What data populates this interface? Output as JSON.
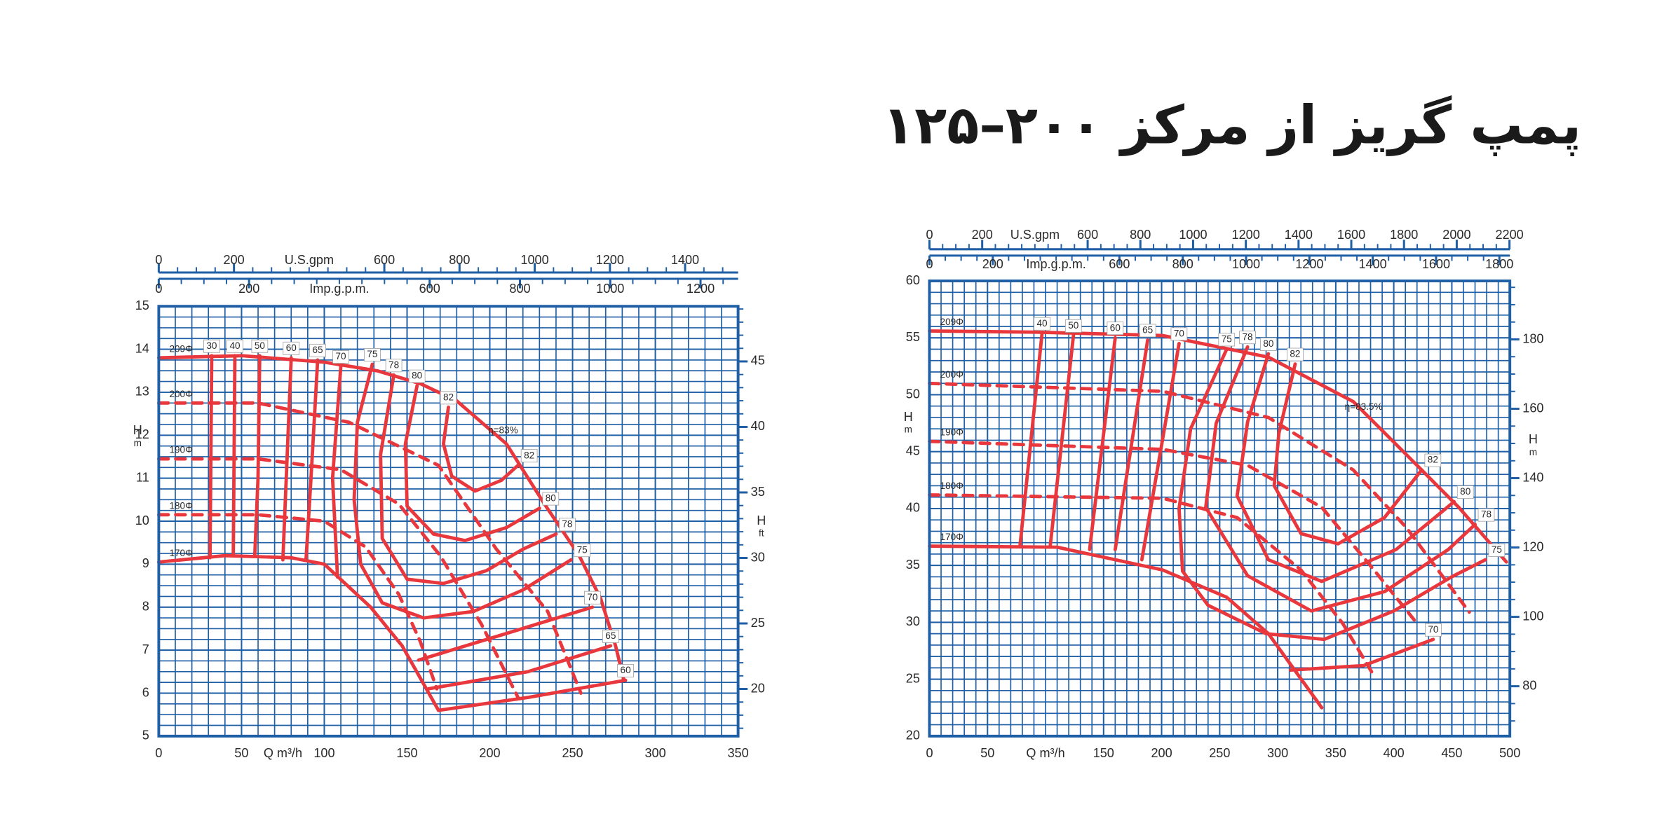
{
  "title": "پمپ گریز از مرکز ۲۰۰–۱۲۵",
  "chart_data": [
    {
      "type": "line",
      "color": "#e8383d",
      "grid": true,
      "x_label": "Q m³/h",
      "xlim": [
        0,
        350
      ],
      "xticks": [
        0,
        50,
        100,
        150,
        200,
        250,
        300,
        350
      ],
      "y_label": "H",
      "y_unit": "m",
      "ylim": [
        5,
        15
      ],
      "yticks": [
        5,
        6,
        7,
        8,
        9,
        10,
        11,
        12,
        13,
        14,
        15
      ],
      "y2_label": "H",
      "y2_unit": "ft",
      "y2lim": [
        16.4,
        49.21
      ],
      "y2ticks": [
        20,
        25,
        30,
        35,
        40,
        45
      ],
      "top_axes": [
        {
          "label": "U.S.gpm",
          "lim": [
            0,
            1541
          ],
          "ticks": [
            0,
            200,
            600,
            800,
            1000,
            1200,
            1400
          ]
        },
        {
          "label": "Imp.g.p.m.",
          "lim": [
            0,
            1283.2
          ],
          "ticks": [
            0,
            200,
            600,
            800,
            1000,
            1200
          ]
        }
      ],
      "series": [
        {
          "name": "209Φ",
          "dash": false,
          "x": [
            0,
            50,
            100,
            132,
            158,
            180,
            210,
            233,
            254,
            267,
            276,
            281
          ],
          "values": [
            13.8,
            13.85,
            13.7,
            13.5,
            13.2,
            12.8,
            11.8,
            10.4,
            9.2,
            8.2,
            7.1,
            6.3
          ]
        },
        {
          "name": "200Φ",
          "dash": true,
          "x": [
            0,
            60,
            115,
            169,
            204,
            235,
            255
          ],
          "values": [
            12.75,
            12.75,
            12.3,
            11.3,
            9.35,
            7.9,
            6.0
          ]
        },
        {
          "name": "190Φ",
          "dash": true,
          "x": [
            0,
            60,
            110,
            145,
            170,
            195,
            217
          ],
          "values": [
            11.45,
            11.45,
            11.2,
            10.4,
            9.2,
            7.6,
            5.9
          ]
        },
        {
          "name": "180Φ",
          "dash": true,
          "x": [
            0,
            60,
            100,
            125,
            145,
            158,
            168
          ],
          "values": [
            10.15,
            10.15,
            10.0,
            9.4,
            8.3,
            7.2,
            6.1
          ]
        },
        {
          "name": "170Φ",
          "dash": false,
          "x": [
            0,
            40,
            80,
            100,
            128,
            147,
            169
          ],
          "values": [
            9.05,
            9.2,
            9.15,
            9.0,
            8.0,
            7.1,
            5.6
          ]
        }
      ],
      "efficiency_curves": [
        {
          "name": "30",
          "x": [
            32,
            31
          ],
          "values": [
            13.85,
            9.15
          ]
        },
        {
          "name": "40",
          "x": [
            46,
            45
          ],
          "values": [
            13.85,
            9.2
          ]
        },
        {
          "name": "50",
          "x": [
            61,
            60,
            58
          ],
          "values": [
            13.85,
            11,
            9.2
          ]
        },
        {
          "name": "60",
          "x": [
            80,
            77,
            75
          ],
          "values": [
            13.8,
            11,
            9.1
          ]
        },
        {
          "name": "65",
          "x": [
            96,
            92,
            89
          ],
          "values": [
            13.75,
            11,
            9.1
          ]
        },
        {
          "name": "70",
          "x": [
            110,
            105,
            108
          ],
          "values": [
            13.6,
            11,
            8.7
          ]
        },
        {
          "name": "75",
          "x": [
            129,
            120,
            118,
            122,
            135,
            160,
            190,
            220,
            249
          ],
          "values": [
            13.65,
            12.3,
            10.5,
            9.0,
            8.1,
            7.75,
            7.9,
            8.4,
            9.1
          ]
        },
        {
          "name": "78",
          "x": [
            142,
            134,
            135,
            150,
            172,
            198,
            220,
            240
          ],
          "values": [
            13.4,
            11.55,
            9.6,
            8.65,
            8.55,
            8.85,
            9.35,
            9.7
          ]
        },
        {
          "name": "80",
          "x": [
            156,
            149,
            150,
            166,
            185,
            210,
            230
          ],
          "values": [
            13.15,
            11.8,
            10.35,
            9.7,
            9.55,
            9.85,
            10.3
          ]
        },
        {
          "name": "82",
          "x": [
            175,
            172,
            177,
            191,
            207,
            217
          ],
          "values": [
            12.65,
            11.8,
            11.05,
            10.7,
            10.95,
            11.3
          ]
        },
        {
          "name": "70",
          "x": [
            262,
            211,
            157
          ],
          "values": [
            8.0,
            7.4,
            6.77
          ]
        },
        {
          "name": "65",
          "x": [
            273,
            223,
            163
          ],
          "values": [
            7.1,
            6.5,
            6.1
          ]
        },
        {
          "name": "60",
          "x": [
            282,
            223,
            169
          ],
          "values": [
            6.3,
            5.9,
            5.6
          ]
        }
      ],
      "annotations": [
        {
          "text": "η=83%",
          "x": 208,
          "y": 12.1
        }
      ]
    },
    {
      "type": "line",
      "color": "#e8383d",
      "grid": true,
      "x_label": "Q m³/h",
      "xlim": [
        0,
        500
      ],
      "xticks": [
        0,
        50,
        150,
        200,
        250,
        300,
        350,
        400,
        450,
        500
      ],
      "y_label": "H",
      "y_unit": "m",
      "ylim": [
        20,
        60
      ],
      "yticks": [
        20,
        25,
        30,
        35,
        40,
        45,
        50,
        55,
        60
      ],
      "y2_label": "H",
      "y2_unit": "m",
      "y2lim": [
        65.62,
        196.85
      ],
      "y2ticks": [
        80,
        100,
        120,
        140,
        160,
        180
      ],
      "top_axes": [
        {
          "label": "U.S.gpm",
          "lim": [
            0,
            2201.5
          ],
          "ticks": [
            0,
            200,
            600,
            800,
            1000,
            1200,
            1400,
            1600,
            1800,
            2000,
            2200
          ]
        },
        {
          "label": "Imp.g.p.m.",
          "lim": [
            0,
            1833.1
          ],
          "ticks": [
            0,
            200,
            600,
            800,
            1000,
            1200,
            1400,
            1600,
            1800
          ]
        }
      ],
      "series": [
        {
          "name": "209Φ",
          "dash": false,
          "x": [
            0,
            92,
            201,
            292,
            365,
            420,
            456,
            497
          ],
          "values": [
            55.6,
            55.5,
            55.2,
            53.3,
            49.4,
            43.8,
            40.1,
            35.3
          ]
        },
        {
          "name": "200Φ",
          "dash": true,
          "x": [
            0,
            201,
            292,
            365,
            411,
            465
          ],
          "values": [
            51.0,
            50.3,
            48.0,
            43.4,
            38.3,
            30.9
          ]
        },
        {
          "name": "190Φ",
          "dash": true,
          "x": [
            0,
            201,
            274,
            338,
            383,
            420
          ],
          "values": [
            45.9,
            45.2,
            43.8,
            40.1,
            34.6,
            29.9
          ]
        },
        {
          "name": "180Φ",
          "dash": true,
          "x": [
            0,
            201,
            265,
            320,
            356,
            383
          ],
          "values": [
            41.2,
            40.9,
            39.2,
            34.6,
            29.9,
            25.3
          ]
        },
        {
          "name": "170Φ",
          "dash": false,
          "x": [
            0,
            110,
            201,
            256,
            292,
            338
          ],
          "values": [
            36.7,
            36.6,
            34.6,
            32.2,
            29.0,
            22.5
          ]
        }
      ],
      "efficiency_curves": [
        {
          "name": "40",
          "x": [
            97,
            78
          ],
          "values": [
            55.4,
            36.7
          ]
        },
        {
          "name": "50",
          "x": [
            124,
            104
          ],
          "values": [
            55.2,
            36.7
          ]
        },
        {
          "name": "60",
          "x": [
            160,
            138
          ],
          "values": [
            55.0,
            36.4
          ]
        },
        {
          "name": "65",
          "x": [
            188,
            160
          ],
          "values": [
            54.8,
            36.4
          ]
        },
        {
          "name": "70",
          "x": [
            215,
            183
          ],
          "values": [
            54.5,
            35.5
          ]
        },
        {
          "name": "75",
          "x": [
            256,
            225,
            215,
            218,
            240,
            290,
            340,
            400,
            450,
            479
          ],
          "values": [
            54.0,
            47,
            40,
            34.5,
            31.5,
            29.0,
            28.5,
            31,
            34,
            35.5
          ]
        },
        {
          "name": "78",
          "x": [
            274,
            247,
            238,
            274,
            329,
            392,
            447,
            470
          ],
          "values": [
            54.2,
            47.5,
            40.1,
            34.1,
            31.0,
            32.7,
            36.4,
            38.6
          ]
        },
        {
          "name": "80",
          "x": [
            292,
            274,
            265,
            292,
            338,
            402,
            452
          ],
          "values": [
            53.6,
            47.6,
            41.1,
            35.5,
            33.6,
            36.4,
            40.6
          ]
        },
        {
          "name": "82",
          "x": [
            315,
            301,
            297,
            320,
            352,
            392,
            424
          ],
          "values": [
            52.7,
            46.6,
            42.0,
            37.8,
            36.9,
            39.2,
            43.4
          ]
        },
        {
          "name": "70",
          "x": [
            434,
            374,
            311
          ],
          "values": [
            28.5,
            26.2,
            25.8
          ]
        }
      ],
      "annotations": [
        {
          "text": "η=83.5%",
          "x": 374,
          "y": 48.9
        }
      ]
    }
  ]
}
